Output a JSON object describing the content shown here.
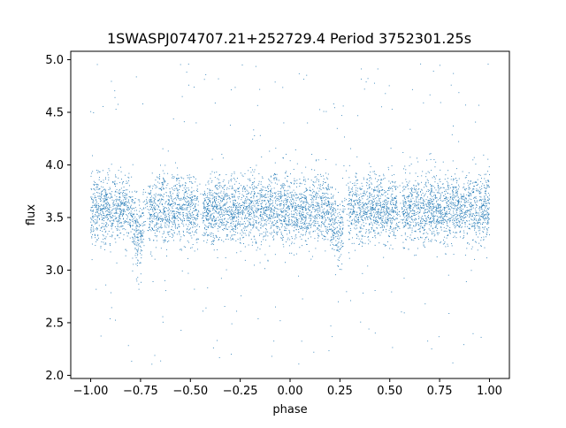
{
  "chart_data": {
    "type": "scatter",
    "title": "1SWASPJ074707.21+252729.4 Period 3752301.25s",
    "xlabel": "phase",
    "ylabel": "flux",
    "xlim": [
      -1.1,
      1.1
    ],
    "ylim": [
      1.97,
      5.08
    ],
    "x_ticks": [
      -1.0,
      -0.75,
      -0.5,
      -0.25,
      0.0,
      0.25,
      0.5,
      0.75,
      1.0
    ],
    "x_tick_labels": [
      "−1.00",
      "−0.75",
      "−0.50",
      "−0.25",
      "0.00",
      "0.25",
      "0.50",
      "0.75",
      "1.00"
    ],
    "y_ticks": [
      2.0,
      2.5,
      3.0,
      3.5,
      4.0,
      4.5,
      5.0
    ],
    "y_tick_labels": [
      "2.0",
      "2.5",
      "3.0",
      "3.5",
      "4.0",
      "4.5",
      "5.0"
    ],
    "grid": false,
    "legend": "none",
    "marker_color": "#1f77b4",
    "phase_range": [
      -1.0,
      1.0
    ],
    "baseline_flux": 3.58,
    "typical_scatter_range": [
      3.1,
      4.0
    ],
    "dips": [
      {
        "phase_range": [
          -0.78,
          -0.72
        ],
        "flux": 3.3
      },
      {
        "phase_range": [
          0.22,
          0.28
        ],
        "flux": 3.3
      }
    ],
    "outlier_range": [
      2.1,
      4.97
    ],
    "gaps_near_phase": [
      -0.72,
      -0.45,
      0.28,
      0.55
    ]
  }
}
